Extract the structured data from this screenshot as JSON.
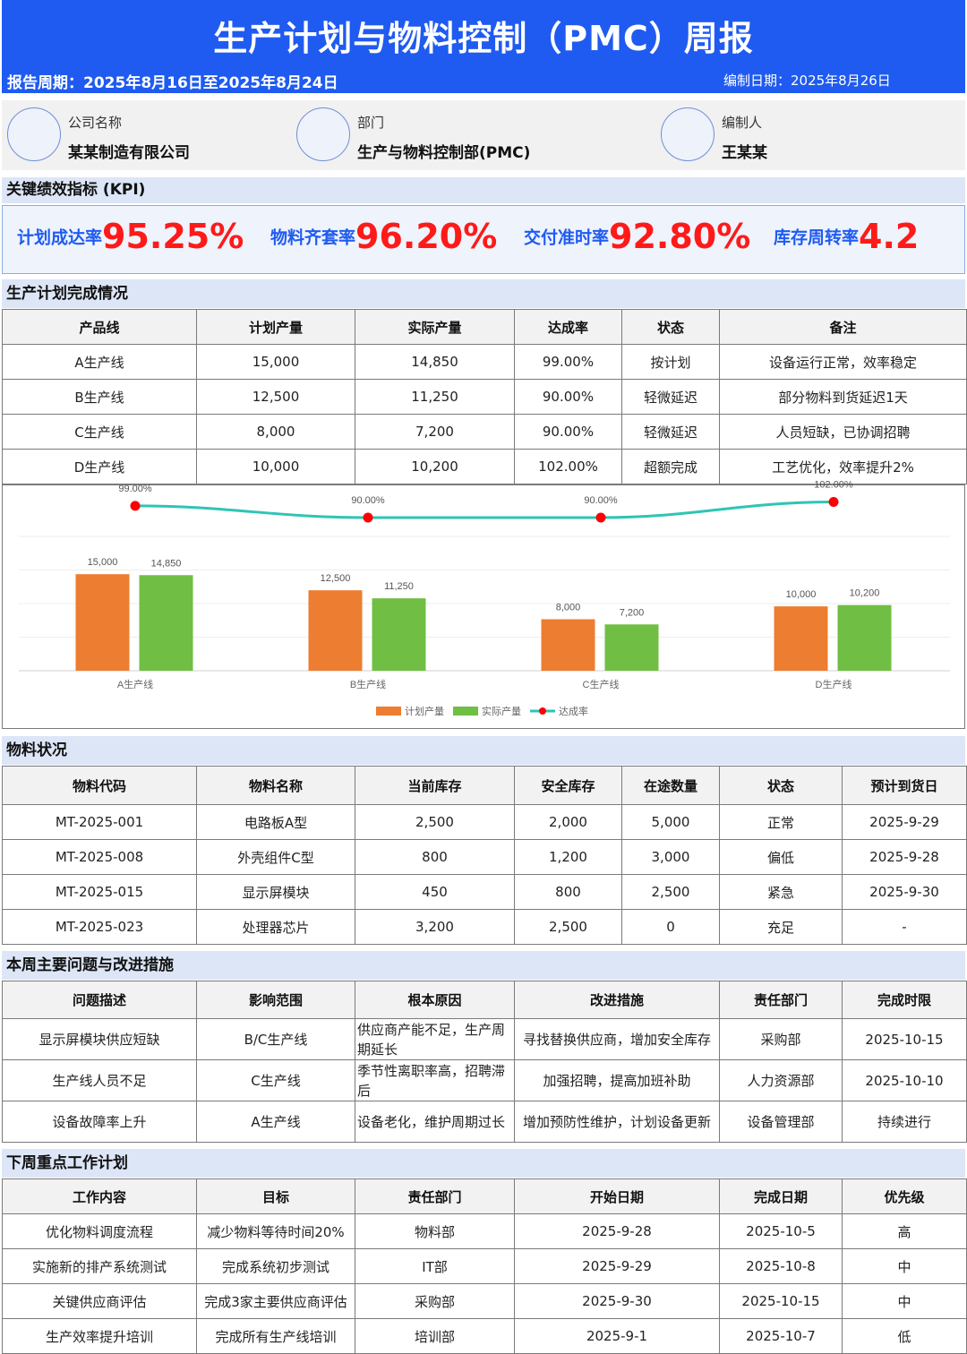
{
  "header": {
    "title": "生产计划与物料控制（PMC）周报",
    "period": "报告周期：2025年8月16日至2025年8月24日",
    "compile_date": "编制日期：2025年8月26日"
  },
  "info": {
    "company_label": "公司名称",
    "company_value": "某某制造有限公司",
    "dept_label": "部门",
    "dept_value": "生产与物料控制部(PMC)",
    "author_label": "编制人",
    "author_value": "王某某"
  },
  "kpi": {
    "section_title": "关键绩效指标 (KPI)",
    "items": [
      {
        "label": "计划成达率",
        "value": "95.25%"
      },
      {
        "label": "物料齐套率",
        "value": "96.20%"
      },
      {
        "label": "交付准时率",
        "value": "92.80%"
      },
      {
        "label": "库存周转率",
        "value": "4.2"
      }
    ]
  },
  "production": {
    "section_title": "生产计划完成情况",
    "headers": [
      "产品线",
      "计划产量",
      "实际产量",
      "达成率",
      "状态",
      "备注"
    ],
    "rows": [
      [
        "A生产线",
        "15,000",
        "14,850",
        "99.00%",
        "按计划",
        "设备运行正常，效率稳定"
      ],
      [
        "B生产线",
        "12,500",
        "11,250",
        "90.00%",
        "轻微延迟",
        "部分物料到货延迟1天"
      ],
      [
        "C生产线",
        "8,000",
        "7,200",
        "90.00%",
        "轻微延迟",
        "人员短缺，已协调招聘"
      ],
      [
        "D生产线",
        "10,000",
        "10,200",
        "102.00%",
        "超额完成",
        "工艺优化，效率提升2%"
      ]
    ]
  },
  "chart_data": {
    "type": "bar",
    "categories": [
      "A生产线",
      "B生产线",
      "C生产线",
      "D生产线"
    ],
    "series": [
      {
        "name": "计划产量",
        "kind": "bar",
        "color": "#ed7d31",
        "values": [
          15000,
          12500,
          8000,
          10000
        ],
        "labels": [
          "15,000",
          "12,500",
          "8,000",
          "10,000"
        ]
      },
      {
        "name": "实际产量",
        "kind": "bar",
        "color": "#70bf44",
        "values": [
          14850,
          11250,
          7200,
          10200
        ],
        "labels": [
          "14,850",
          "11,250",
          "7,200",
          "10,200"
        ]
      },
      {
        "name": "达成率",
        "kind": "line",
        "color": "#2ec4b6",
        "marker_color": "#ff0000",
        "values": [
          99.0,
          90.0,
          90.0,
          102.0
        ],
        "labels": [
          "99.00%",
          "90.00%",
          "90.00%",
          "102.00%"
        ]
      }
    ],
    "ylim": [
      0,
      16000
    ],
    "grid": true,
    "legend": "bottom"
  },
  "materials": {
    "section_title": "物料状况",
    "headers": [
      "物料代码",
      "物料名称",
      "当前库存",
      "安全库存",
      "在途数量",
      "状态",
      "预计到货日"
    ],
    "rows": [
      [
        "MT-2025-001",
        "电路板A型",
        "2,500",
        "2,000",
        "5,000",
        "正常",
        "2025-9-29"
      ],
      [
        "MT-2025-008",
        "外壳组件C型",
        "800",
        "1,200",
        "3,000",
        "偏低",
        "2025-9-28"
      ],
      [
        "MT-2025-015",
        "显示屏模块",
        "450",
        "800",
        "2,500",
        "紧急",
        "2025-9-30"
      ],
      [
        "MT-2025-023",
        "处理器芯片",
        "3,200",
        "2,500",
        "0",
        "充足",
        "-"
      ]
    ]
  },
  "issues": {
    "section_title": "本周主要问题与改进措施",
    "headers": [
      "问题描述",
      "影响范围",
      "根本原因",
      "改进措施",
      "责任部门",
      "完成时限"
    ],
    "rows": [
      [
        "显示屏模块供应短缺",
        "B/C生产线",
        "供应商产能不足，生产周期延长",
        "寻找替换供应商，增加安全库存",
        "采购部",
        "2025-10-15"
      ],
      [
        "生产线人员不足",
        "C生产线",
        "季节性离职率高，招聘滞后",
        "加强招聘，提高加班补助",
        "人力资源部",
        "2025-10-10"
      ],
      [
        "设备故障率上升",
        "A生产线",
        "设备老化，维护周期过长",
        "增加预防性维护，计划设备更新",
        "设备管理部",
        "持续进行"
      ]
    ]
  },
  "plan": {
    "section_title": "下周重点工作计划",
    "headers": [
      "工作内容",
      "目标",
      "责任部门",
      "开始日期",
      "完成日期",
      "优先级"
    ],
    "rows": [
      [
        "优化物料调度流程",
        "减少物料等待时间20%",
        "物料部",
        "2025-9-28",
        "2025-10-5",
        "高"
      ],
      [
        "实施新的排产系统测试",
        "完成系统初步测试",
        "IT部",
        "2025-9-29",
        "2025-10-8",
        "中"
      ],
      [
        "关键供应商评估",
        "完成3家主要供应商评估",
        "采购部",
        "2025-9-30",
        "2025-10-15",
        "中"
      ],
      [
        "生产效率提升培训",
        "完成所有生产线培训",
        "培训部",
        "2025-9-1",
        "2025-10-7",
        "低"
      ]
    ]
  }
}
